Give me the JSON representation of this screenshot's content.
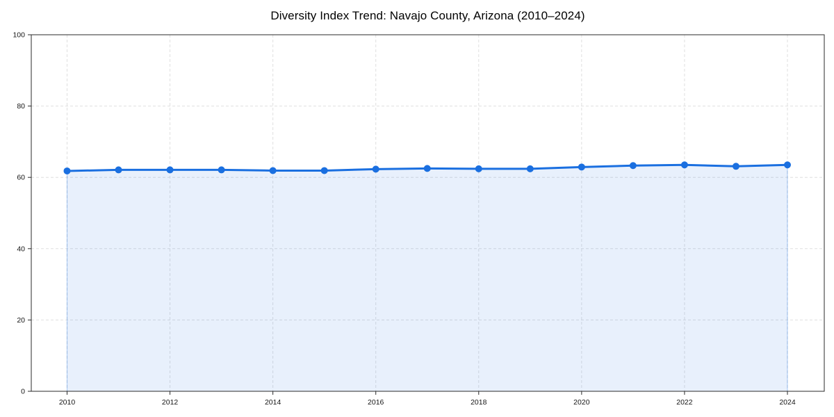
{
  "chart_data": {
    "type": "line",
    "title": "Diversity Index Trend: Navajo County, Arizona (2010–2024)",
    "xlabel": "",
    "ylabel": "",
    "x": [
      2010,
      2011,
      2012,
      2013,
      2014,
      2015,
      2016,
      2017,
      2018,
      2019,
      2020,
      2021,
      2022,
      2023,
      2024
    ],
    "series": [
      {
        "name": "Diversity Index",
        "values": [
          61.8,
          62.1,
          62.1,
          62.1,
          61.9,
          61.9,
          62.3,
          62.5,
          62.4,
          62.4,
          62.9,
          63.3,
          63.5,
          63.1,
          63.5
        ]
      }
    ],
    "xticks": [
      2010,
      2012,
      2014,
      2016,
      2018,
      2020,
      2022,
      2024
    ],
    "yticks": [
      0,
      20,
      40,
      60,
      80,
      100
    ],
    "ylim": [
      0,
      100
    ],
    "grid": true,
    "legend_position": "none",
    "marker": "circle",
    "colors": {
      "line": "#1a6fe0",
      "marker": "#1a6fe0",
      "fill": "rgba(26,111,224,0.10)",
      "fill_edge": "rgba(26,111,224,0.30)",
      "gridline": "#dfdfdf",
      "spine": "#2a2a2a",
      "background": "#ffffff"
    }
  }
}
